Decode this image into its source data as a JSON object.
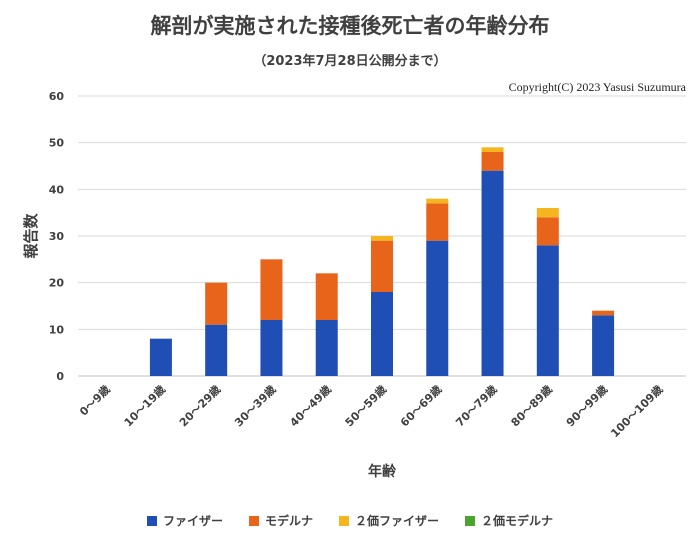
{
  "header": {
    "title": "解剖が実施された接種後死亡者の年齢分布",
    "subtitle": "（2023年7月28日公開分まで）",
    "copyright": "Copyright(C)  2023 Yasusi Suzumura"
  },
  "colors": {
    "pfizer": "#1f4fb4",
    "moderna": "#e8641b",
    "pfizer2": "#f5b51e",
    "moderna2": "#4aa32c",
    "grid": "#d9d9d9",
    "axis_text": "#404040"
  },
  "chart_data": {
    "type": "bar",
    "stacked": true,
    "title": "解剖が実施された接種後死亡者の年齢分布",
    "subtitle": "（2023年7月28日公開分まで）",
    "xlabel": "年齢",
    "ylabel": "報告数",
    "ylim": [
      0,
      60
    ],
    "yticks": [
      0,
      10,
      20,
      30,
      40,
      50,
      60
    ],
    "grid": true,
    "legend_position": "bottom",
    "categories": [
      "0～9歳",
      "10～19歳",
      "20～29歳",
      "30～39歳",
      "40～49歳",
      "50～59歳",
      "60～69歳",
      "70～79歳",
      "80～89歳",
      "90～99歳",
      "100～109歳"
    ],
    "series": [
      {
        "name": "ファイザー",
        "values": [
          0,
          8,
          11,
          12,
          12,
          18,
          29,
          44,
          28,
          13,
          0
        ]
      },
      {
        "name": "モデルナ",
        "values": [
          0,
          0,
          9,
          13,
          10,
          11,
          8,
          4,
          6,
          1,
          0
        ]
      },
      {
        "name": "２価ファイザー",
        "values": [
          0,
          0,
          0,
          0,
          0,
          1,
          1,
          1,
          2,
          0,
          0
        ]
      },
      {
        "name": "２価モデルナ",
        "values": [
          0,
          0,
          0,
          0,
          0,
          0,
          0,
          0,
          0,
          0,
          0
        ]
      }
    ]
  }
}
